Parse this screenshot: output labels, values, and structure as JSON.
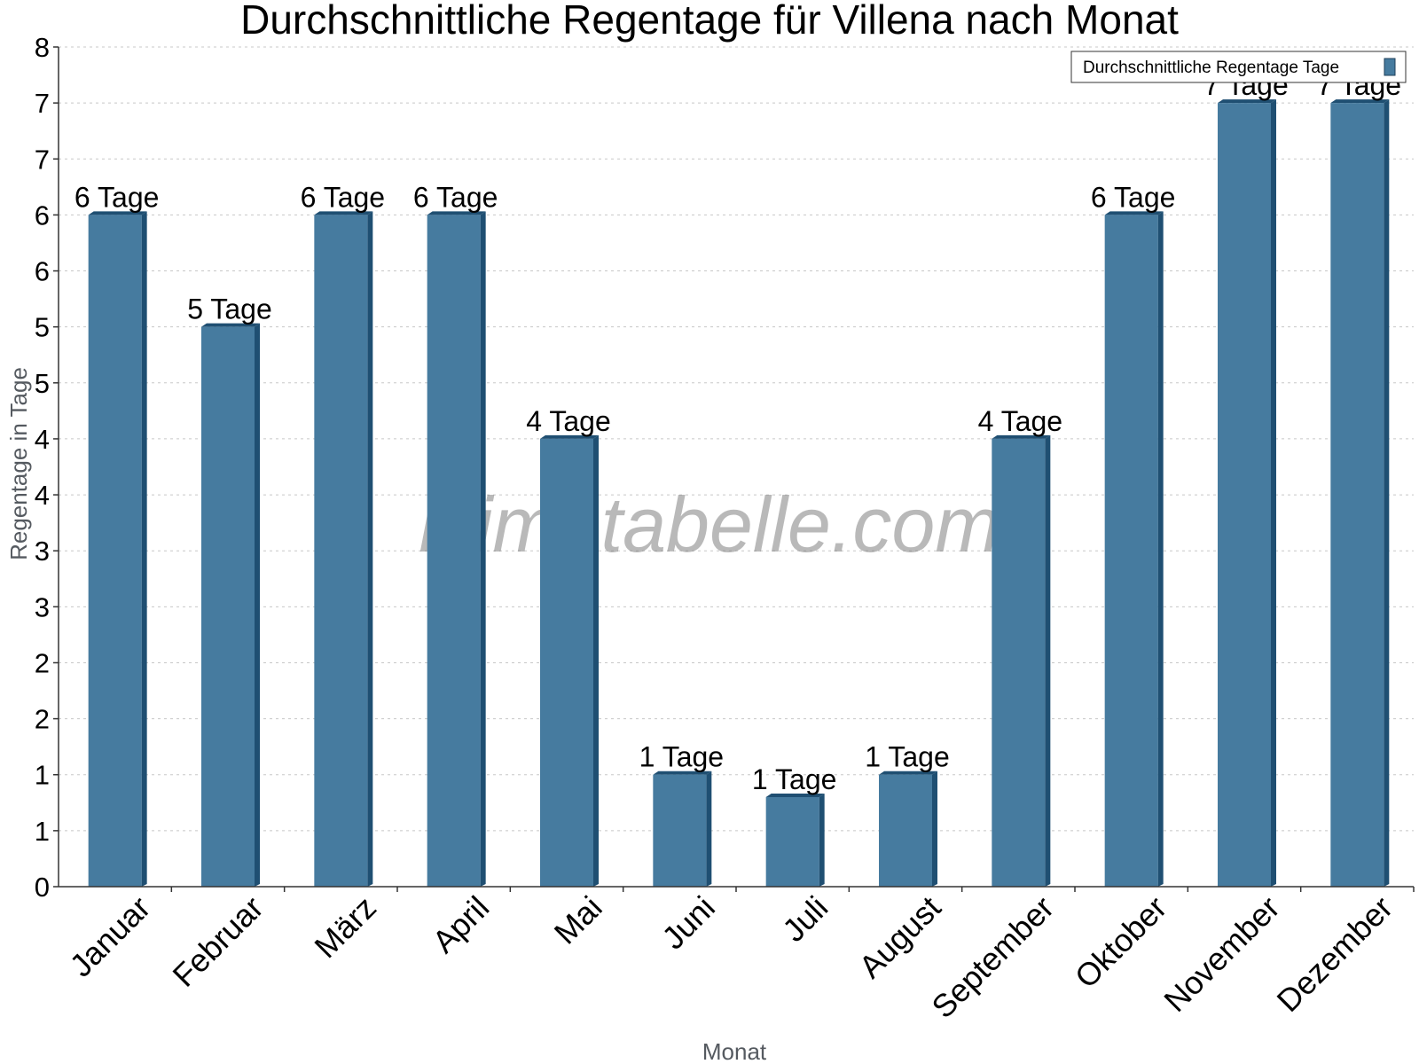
{
  "chart_data": {
    "type": "bar",
    "title": "Durchschnittliche Regentage für Villena nach Monat",
    "xlabel": "Monat",
    "ylabel": "Regentage in Tage",
    "categories": [
      "Januar",
      "Februar",
      "März",
      "April",
      "Mai",
      "Juni",
      "Juli",
      "August",
      "September",
      "Oktober",
      "November",
      "Dezember"
    ],
    "series": [
      {
        "name": "Durchschnittliche Regentage Tage",
        "values": [
          6,
          5,
          6,
          6,
          4,
          1,
          0.8,
          1,
          4,
          6,
          7,
          7
        ],
        "labels": [
          "6 Tage",
          "5 Tage",
          "6 Tage",
          "6 Tage",
          "4 Tage",
          "1 Tage",
          "1 Tage",
          "1 Tage",
          "4 Tage",
          "6 Tage",
          "7 Tage",
          "7 Tage"
        ],
        "color": "#467b9f",
        "side_color": "#1f4f72"
      }
    ],
    "ylim": [
      0,
      7.5
    ],
    "yticks": [
      {
        "value": 0,
        "label": "0"
      },
      {
        "value": 0.5,
        "label": "1"
      },
      {
        "value": 1,
        "label": "1"
      },
      {
        "value": 1.5,
        "label": "2"
      },
      {
        "value": 2,
        "label": "2"
      },
      {
        "value": 2.5,
        "label": "3"
      },
      {
        "value": 3,
        "label": "3"
      },
      {
        "value": 3.5,
        "label": "4"
      },
      {
        "value": 4,
        "label": "4"
      },
      {
        "value": 4.5,
        "label": "5"
      },
      {
        "value": 5,
        "label": "5"
      },
      {
        "value": 5.5,
        "label": "6"
      },
      {
        "value": 6,
        "label": "6"
      },
      {
        "value": 6.5,
        "label": "7"
      },
      {
        "value": 7,
        "label": "7"
      },
      {
        "value": 7.5,
        "label": "8"
      }
    ],
    "grid": true,
    "legend_position": "top-right",
    "watermark": "klimatabelle.com"
  }
}
